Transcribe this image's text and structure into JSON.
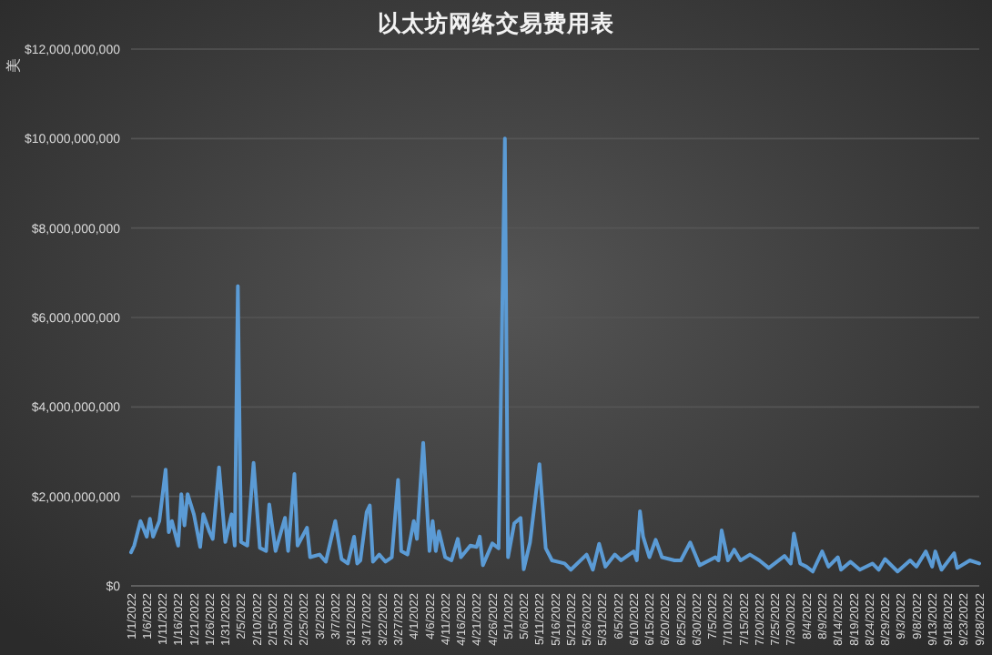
{
  "chart_data": {
    "type": "line",
    "title": "以太坊网络交易费用表",
    "ylabel": "美",
    "x": [
      "2022-01-01",
      "2022-01-02",
      "2022-01-04",
      "2022-01-06",
      "2022-01-07",
      "2022-01-08",
      "2022-01-10",
      "2022-01-12",
      "2022-01-13",
      "2022-01-14",
      "2022-01-16",
      "2022-01-17",
      "2022-01-18",
      "2022-01-19",
      "2022-01-21",
      "2022-01-23",
      "2022-01-24",
      "2022-01-26",
      "2022-01-27",
      "2022-01-29",
      "2022-01-31",
      "2022-02-02",
      "2022-02-03",
      "2022-02-04",
      "2022-02-05",
      "2022-02-07",
      "2022-02-09",
      "2022-02-11",
      "2022-02-13",
      "2022-02-14",
      "2022-02-16",
      "2022-02-19",
      "2022-02-20",
      "2022-02-22",
      "2022-02-23",
      "2022-02-26",
      "2022-02-27",
      "2022-03-02",
      "2022-03-04",
      "2022-03-07",
      "2022-03-09",
      "2022-03-11",
      "2022-03-13",
      "2022-03-14",
      "2022-03-15",
      "2022-03-17",
      "2022-03-18",
      "2022-03-19",
      "2022-03-21",
      "2022-03-23",
      "2022-03-25",
      "2022-03-27",
      "2022-03-28",
      "2022-03-30",
      "2022-04-01",
      "2022-04-02",
      "2022-04-04",
      "2022-04-06",
      "2022-04-07",
      "2022-04-08",
      "2022-04-09",
      "2022-04-11",
      "2022-04-13",
      "2022-04-15",
      "2022-04-16",
      "2022-04-19",
      "2022-04-21",
      "2022-04-22",
      "2022-04-23",
      "2022-04-26",
      "2022-04-28",
      "2022-04-30",
      "2022-05-01",
      "2022-05-03",
      "2022-05-05",
      "2022-05-06",
      "2022-05-08",
      "2022-05-11",
      "2022-05-13",
      "2022-05-15",
      "2022-05-19",
      "2022-05-21",
      "2022-05-26",
      "2022-05-28",
      "2022-05-30",
      "2022-06-01",
      "2022-06-04",
      "2022-06-06",
      "2022-06-10",
      "2022-06-11",
      "2022-06-12",
      "2022-06-13",
      "2022-06-15",
      "2022-06-17",
      "2022-06-19",
      "2022-06-23",
      "2022-06-25",
      "2022-06-28",
      "2022-07-01",
      "2022-07-06",
      "2022-07-07",
      "2022-07-08",
      "2022-07-10",
      "2022-07-12",
      "2022-07-14",
      "2022-07-17",
      "2022-07-20",
      "2022-07-23",
      "2022-07-28",
      "2022-07-30",
      "2022-07-31",
      "2022-08-02",
      "2022-08-04",
      "2022-08-06",
      "2022-08-09",
      "2022-08-11",
      "2022-08-14",
      "2022-08-15",
      "2022-08-18",
      "2022-08-21",
      "2022-08-25",
      "2022-08-27",
      "2022-08-29",
      "2022-09-02",
      "2022-09-06",
      "2022-09-08",
      "2022-09-11",
      "2022-09-13",
      "2022-09-14",
      "2022-09-16",
      "2022-09-20",
      "2022-09-21",
      "2022-09-25",
      "2022-09-28"
    ],
    "series": [
      {
        "color": "#5b9bd5",
        "values": [
          750000000,
          900000000,
          1450000000,
          1100000000,
          1500000000,
          1100000000,
          1450000000,
          2600000000,
          1200000000,
          1450000000,
          900000000,
          2050000000,
          1350000000,
          2050000000,
          1600000000,
          870000000,
          1600000000,
          1200000000,
          1050000000,
          2650000000,
          980000000,
          1600000000,
          900000000,
          6700000000,
          980000000,
          900000000,
          2750000000,
          850000000,
          780000000,
          1820000000,
          780000000,
          1520000000,
          780000000,
          2500000000,
          900000000,
          1300000000,
          640000000,
          700000000,
          540000000,
          1450000000,
          600000000,
          500000000,
          1100000000,
          500000000,
          570000000,
          1650000000,
          1800000000,
          540000000,
          700000000,
          540000000,
          640000000,
          2370000000,
          780000000,
          700000000,
          1450000000,
          1050000000,
          3200000000,
          780000000,
          1450000000,
          780000000,
          1220000000,
          640000000,
          570000000,
          1050000000,
          640000000,
          900000000,
          870000000,
          1100000000,
          460000000,
          950000000,
          840000000,
          10000000000,
          640000000,
          1400000000,
          1520000000,
          370000000,
          970000000,
          2720000000,
          840000000,
          570000000,
          500000000,
          360000000,
          700000000,
          360000000,
          940000000,
          430000000,
          700000000,
          570000000,
          770000000,
          570000000,
          1670000000,
          1100000000,
          640000000,
          1030000000,
          640000000,
          570000000,
          570000000,
          970000000,
          460000000,
          640000000,
          570000000,
          1240000000,
          570000000,
          810000000,
          570000000,
          700000000,
          570000000,
          400000000,
          670000000,
          500000000,
          1170000000,
          500000000,
          430000000,
          320000000,
          770000000,
          430000000,
          640000000,
          360000000,
          540000000,
          360000000,
          500000000,
          360000000,
          600000000,
          320000000,
          570000000,
          430000000,
          770000000,
          430000000,
          770000000,
          360000000,
          730000000,
          400000000,
          570000000,
          500000000
        ]
      }
    ],
    "xlim": [
      "2022-01-01",
      "2022-09-28"
    ],
    "xticks": [
      {
        "value": "2022-01-01",
        "label": "1/1/2022"
      },
      {
        "value": "2022-01-06",
        "label": "1/6/2022"
      },
      {
        "value": "2022-01-11",
        "label": "1/11/2022"
      },
      {
        "value": "2022-01-16",
        "label": "1/16/2022"
      },
      {
        "value": "2022-01-21",
        "label": "1/21/2022"
      },
      {
        "value": "2022-01-26",
        "label": "1/26/2022"
      },
      {
        "value": "2022-01-31",
        "label": "1/31/2022"
      },
      {
        "value": "2022-02-05",
        "label": "2/5/2022"
      },
      {
        "value": "2022-02-10",
        "label": "2/10/2022"
      },
      {
        "value": "2022-02-15",
        "label": "2/15/2022"
      },
      {
        "value": "2022-02-20",
        "label": "2/20/2022"
      },
      {
        "value": "2022-02-25",
        "label": "2/25/2022"
      },
      {
        "value": "2022-03-02",
        "label": "3/2/2022"
      },
      {
        "value": "2022-03-07",
        "label": "3/7/2022"
      },
      {
        "value": "2022-03-12",
        "label": "3/12/2022"
      },
      {
        "value": "2022-03-17",
        "label": "3/17/2022"
      },
      {
        "value": "2022-03-22",
        "label": "3/22/2022"
      },
      {
        "value": "2022-03-27",
        "label": "3/27/2022"
      },
      {
        "value": "2022-04-01",
        "label": "4/1/2022"
      },
      {
        "value": "2022-04-06",
        "label": "4/6/2022"
      },
      {
        "value": "2022-04-11",
        "label": "4/11/2022"
      },
      {
        "value": "2022-04-16",
        "label": "4/16/2022"
      },
      {
        "value": "2022-04-21",
        "label": "4/21/2022"
      },
      {
        "value": "2022-04-26",
        "label": "4/26/2022"
      },
      {
        "value": "2022-05-01",
        "label": "5/1/2022"
      },
      {
        "value": "2022-05-06",
        "label": "5/6/2022"
      },
      {
        "value": "2022-05-11",
        "label": "5/11/2022"
      },
      {
        "value": "2022-05-16",
        "label": "5/16/2022"
      },
      {
        "value": "2022-05-21",
        "label": "5/21/2022"
      },
      {
        "value": "2022-05-26",
        "label": "5/26/2022"
      },
      {
        "value": "2022-05-31",
        "label": "5/31/2022"
      },
      {
        "value": "2022-06-05",
        "label": "6/5/2022"
      },
      {
        "value": "2022-06-10",
        "label": "6/10/2022"
      },
      {
        "value": "2022-06-15",
        "label": "6/15/2022"
      },
      {
        "value": "2022-06-20",
        "label": "6/20/2022"
      },
      {
        "value": "2022-06-25",
        "label": "6/25/2022"
      },
      {
        "value": "2022-06-30",
        "label": "6/30/2022"
      },
      {
        "value": "2022-07-05",
        "label": "7/5/2022"
      },
      {
        "value": "2022-07-10",
        "label": "7/10/2022"
      },
      {
        "value": "2022-07-15",
        "label": "7/15/2022"
      },
      {
        "value": "2022-07-20",
        "label": "7/20/2022"
      },
      {
        "value": "2022-07-25",
        "label": "7/25/2022"
      },
      {
        "value": "2022-07-30",
        "label": "7/30/2022"
      },
      {
        "value": "2022-08-04",
        "label": "8/4/2022"
      },
      {
        "value": "2022-08-09",
        "label": "8/9/2022"
      },
      {
        "value": "2022-08-14",
        "label": "8/14/2022"
      },
      {
        "value": "2022-08-19",
        "label": "8/19/2022"
      },
      {
        "value": "2022-08-24",
        "label": "8/24/2022"
      },
      {
        "value": "2022-08-29",
        "label": "8/29/2022"
      },
      {
        "value": "2022-09-03",
        "label": "9/3/2022"
      },
      {
        "value": "2022-09-08",
        "label": "9/8/2022"
      },
      {
        "value": "2022-09-13",
        "label": "9/13/2022"
      },
      {
        "value": "2022-09-18",
        "label": "9/18/2022"
      },
      {
        "value": "2022-09-23",
        "label": "9/23/2022"
      },
      {
        "value": "2022-09-28",
        "label": "9/28/2022"
      }
    ],
    "ylim": [
      0,
      12000000000
    ],
    "yticks": [
      {
        "value": 0,
        "label": "$0"
      },
      {
        "value": 2000000000,
        "label": "$2,000,000,000"
      },
      {
        "value": 4000000000,
        "label": "$4,000,000,000"
      },
      {
        "value": 6000000000,
        "label": "$6,000,000,000"
      },
      {
        "value": 8000000000,
        "label": "$8,000,000,000"
      },
      {
        "value": 10000000000,
        "label": "$10,000,000,000"
      },
      {
        "value": 12000000000,
        "label": "$12,000,000,000"
      }
    ],
    "grid": "y"
  }
}
